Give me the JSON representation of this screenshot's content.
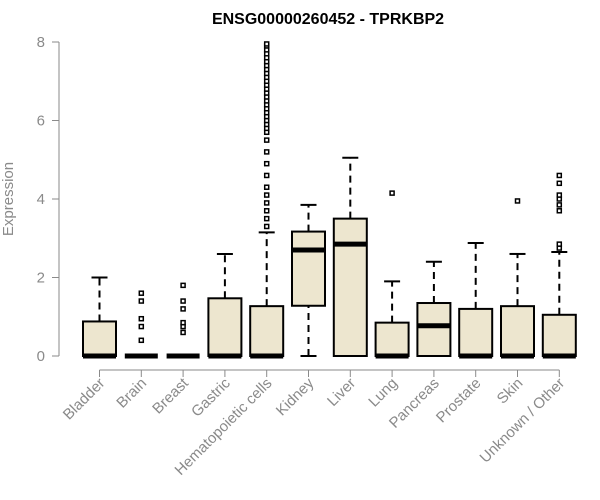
{
  "chart_data": {
    "type": "box",
    "title": "ENSG00000260452 - TPRKBP2",
    "xlabel": "",
    "ylabel": "Expression",
    "ylim": [
      0,
      8
    ],
    "yticks": [
      "0",
      "2",
      "4",
      "6",
      "8"
    ],
    "grid": false,
    "colors": {
      "box_fill": "#ede6cf",
      "box_stroke": "#000000",
      "median": "#000000",
      "axis": "#8a8a8a"
    },
    "categories": [
      "Bladder",
      "Brain",
      "Breast",
      "Gastric",
      "Hematopoietic cells",
      "Kidney",
      "Liver",
      "Lung",
      "Pancreas",
      "Prostate",
      "Skin",
      "Unknown / Other"
    ],
    "boxes": [
      {
        "category": "Bladder",
        "min": 0,
        "q1": 0,
        "median": 0,
        "q3": 0.88,
        "max": 2.0,
        "outliers": []
      },
      {
        "category": "Brain",
        "min": 0,
        "q1": 0,
        "median": 0,
        "q3": 0,
        "max": 0,
        "outliers": [
          0.4,
          0.75,
          0.95,
          1.4,
          1.6
        ]
      },
      {
        "category": "Breast",
        "min": 0,
        "q1": 0,
        "median": 0,
        "q3": 0,
        "max": 0,
        "outliers": [
          0.6,
          0.75,
          0.85,
          1.2,
          1.4,
          1.8
        ]
      },
      {
        "category": "Gastric",
        "min": 0,
        "q1": 0,
        "median": 0,
        "q3": 1.47,
        "max": 2.6,
        "outliers": []
      },
      {
        "category": "Hematopoietic cells",
        "min": 0,
        "q1": 0,
        "median": 0,
        "q3": 1.27,
        "max": 3.15,
        "outliers": [
          3.3,
          3.5,
          3.7,
          3.9,
          4.1,
          4.3,
          4.6,
          4.9,
          5.2,
          5.5,
          5.7,
          5.8,
          5.9,
          6.0,
          6.1,
          6.2,
          6.3,
          6.4,
          6.5,
          6.6,
          6.7,
          6.8,
          6.9,
          7.0,
          7.1,
          7.2,
          7.3,
          7.4,
          7.5,
          7.6,
          7.7,
          7.8,
          7.9,
          7.95
        ]
      },
      {
        "category": "Kidney",
        "min": 0,
        "q1": 1.28,
        "median": 2.7,
        "q3": 3.17,
        "max": 3.85,
        "outliers": []
      },
      {
        "category": "Liver",
        "min": 0,
        "q1": 0,
        "median": 2.85,
        "q3": 3.5,
        "max": 5.05,
        "outliers": []
      },
      {
        "category": "Lung",
        "min": 0,
        "q1": 0,
        "median": 0,
        "q3": 0.85,
        "max": 1.9,
        "outliers": [
          4.15
        ]
      },
      {
        "category": "Pancreas",
        "min": 0,
        "q1": 0,
        "median": 0.77,
        "q3": 1.35,
        "max": 2.4,
        "outliers": []
      },
      {
        "category": "Prostate",
        "min": 0,
        "q1": 0,
        "median": 0,
        "q3": 1.2,
        "max": 2.88,
        "outliers": []
      },
      {
        "category": "Skin",
        "min": 0,
        "q1": 0,
        "median": 0,
        "q3": 1.27,
        "max": 2.6,
        "outliers": [
          3.95
        ]
      },
      {
        "category": "Unknown / Other",
        "min": 0,
        "q1": 0,
        "median": 0,
        "q3": 1.05,
        "max": 2.65,
        "outliers": [
          2.75,
          2.85,
          3.7,
          3.85,
          4.0,
          4.1,
          4.4,
          4.6
        ]
      }
    ]
  }
}
